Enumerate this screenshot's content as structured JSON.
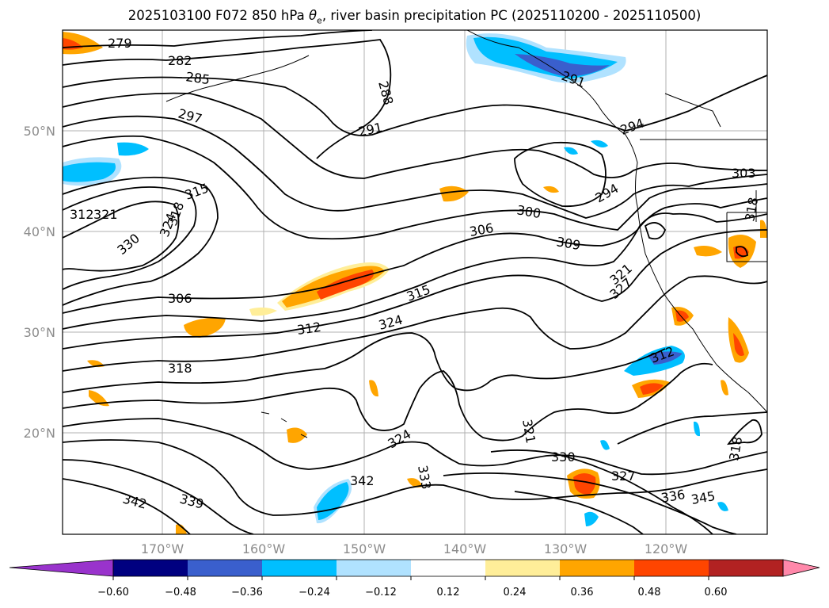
{
  "title": {
    "prefix": "2025103100 F072 850 hPa ",
    "theta": "θ",
    "theta_sub": "e",
    "suffix": ", river basin precipitation PC (2025110200 - 2025110500)"
  },
  "map": {
    "lat_labels": [
      "50°N",
      "40°N",
      "30°N",
      "20°N"
    ],
    "lon_labels": [
      "170°W",
      "160°W",
      "150°W",
      "140°W",
      "130°W",
      "120°W"
    ],
    "contour_labels": [
      "279",
      "282",
      "285",
      "288",
      "291",
      "291",
      "294",
      "294",
      "297",
      "300",
      "303",
      "306",
      "306",
      "309",
      "312",
      "312",
      "312",
      "315",
      "315",
      "318",
      "318",
      "318",
      "321",
      "321",
      "324",
      "324",
      "324",
      "327",
      "327",
      "330",
      "330",
      "333",
      "336",
      "339",
      "342",
      "342",
      "345",
      "318",
      "321"
    ]
  },
  "colorbar": {
    "colors": [
      "#9933cc",
      "#000080",
      "#3a5fcd",
      "#00bfff",
      "#b0e2ff",
      "#ffffff",
      "#ffee99",
      "#ffa500",
      "#ff4500",
      "#b22222",
      "#ff88aa"
    ],
    "ticks": [
      "−0.60",
      "−0.48",
      "−0.36",
      "−0.24",
      "−0.12",
      "0.12",
      "0.24",
      "0.36",
      "0.48",
      "0.60"
    ]
  }
}
